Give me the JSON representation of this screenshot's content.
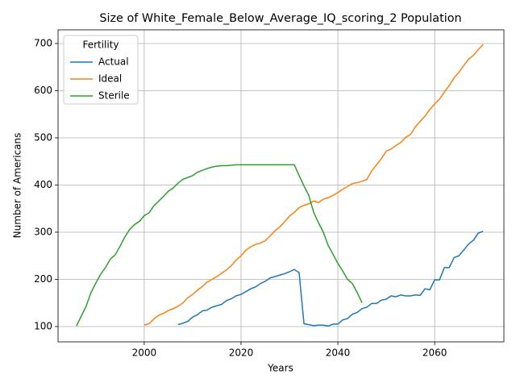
{
  "chart_data": {
    "type": "line",
    "title": "Size of White_Female_Below_Average_IQ_scoring_2 Population",
    "x_label": "Years",
    "y_label": "Number of Americans",
    "legend_title": "Fertility",
    "legend": "upper left",
    "grid": true,
    "xlim": [
      1982.2,
      2074.3
    ],
    "xticks": [
      2000,
      2020,
      2040,
      2060
    ],
    "ylim": [
      67.5,
      729
    ],
    "yticks": [
      100,
      200,
      300,
      400,
      500,
      600,
      700
    ],
    "x": [
      1986,
      1987,
      1988,
      1989,
      1990,
      1991,
      1992,
      1993,
      1994,
      1995,
      1996,
      1997,
      1998,
      1999,
      2000,
      2001,
      2002,
      2003,
      2004,
      2005,
      2006,
      2007,
      2008,
      2009,
      2010,
      2011,
      2012,
      2013,
      2014,
      2015,
      2016,
      2017,
      2018,
      2019,
      2020,
      2021,
      2022,
      2023,
      2024,
      2025,
      2026,
      2027,
      2028,
      2029,
      2030,
      2031,
      2032,
      2033,
      2034,
      2035,
      2036,
      2037,
      2038,
      2039,
      2040,
      2041,
      2042,
      2043,
      2044,
      2045,
      2046,
      2047,
      2048,
      2049,
      2050,
      2051,
      2052,
      2053,
      2054,
      2055,
      2056,
      2057,
      2058,
      2059,
      2060,
      2061,
      2062,
      2063,
      2064,
      2065,
      2066,
      2067,
      2068,
      2069,
      2070
    ],
    "series": [
      {
        "name": "Actual",
        "color": "#1f77b4",
        "values": [
          null,
          null,
          null,
          null,
          null,
          null,
          null,
          null,
          null,
          null,
          null,
          null,
          null,
          null,
          null,
          null,
          null,
          null,
          null,
          null,
          null,
          104,
          107,
          111,
          120,
          125,
          133,
          135,
          141,
          144,
          147,
          155,
          159,
          165,
          168,
          174,
          180,
          184,
          191,
          196,
          203,
          206,
          209,
          212,
          216,
          221,
          214,
          106,
          104,
          102,
          103,
          103,
          101,
          105,
          105,
          114,
          117,
          126,
          130,
          138,
          141,
          149,
          149,
          156,
          158,
          165,
          163,
          167,
          165,
          165,
          167,
          166,
          180,
          178,
          199,
          199,
          225,
          225,
          246,
          250,
          262,
          275,
          283,
          298,
          302
        ]
      },
      {
        "name": "Ideal",
        "color": "#ff7f0e",
        "values": [
          null,
          null,
          null,
          null,
          null,
          null,
          null,
          null,
          null,
          null,
          null,
          null,
          null,
          null,
          103,
          106,
          116,
          124,
          128,
          134,
          138,
          143,
          150,
          161,
          168,
          177,
          185,
          194,
          200,
          206,
          213,
          220,
          229,
          241,
          250,
          262,
          269,
          274,
          277,
          282,
          292,
          303,
          311,
          322,
          334,
          342,
          352,
          357,
          360,
          366,
          363,
          370,
          373,
          378,
          384,
          391,
          397,
          403,
          405,
          408,
          412,
          430,
          443,
          456,
          472,
          476,
          484,
          490,
          501,
          507,
          523,
          535,
          546,
          560,
          572,
          582,
          597,
          611,
          627,
          639,
          653,
          667,
          675,
          687,
          698
        ]
      },
      {
        "name": "Sterile",
        "color": "#2ca02c",
        "values": [
          101,
          122,
          143,
          172,
          192,
          211,
          225,
          243,
          252,
          270,
          290,
          306,
          316,
          323,
          335,
          341,
          356,
          366,
          376,
          387,
          394,
          404,
          412,
          416,
          420,
          427,
          431,
          435,
          438,
          440,
          441,
          441,
          442,
          443,
          443,
          443,
          443,
          443,
          443,
          443,
          443,
          443,
          443,
          443,
          443,
          443,
          420,
          398,
          378,
          342,
          320,
          300,
          272,
          253,
          234,
          218,
          200,
          191,
          172,
          150,
          null,
          null,
          null,
          null,
          null,
          null,
          null,
          null,
          null,
          null,
          null,
          null,
          null,
          null,
          null,
          null,
          null,
          null,
          null,
          null,
          null,
          null,
          null,
          null,
          null
        ]
      }
    ]
  }
}
